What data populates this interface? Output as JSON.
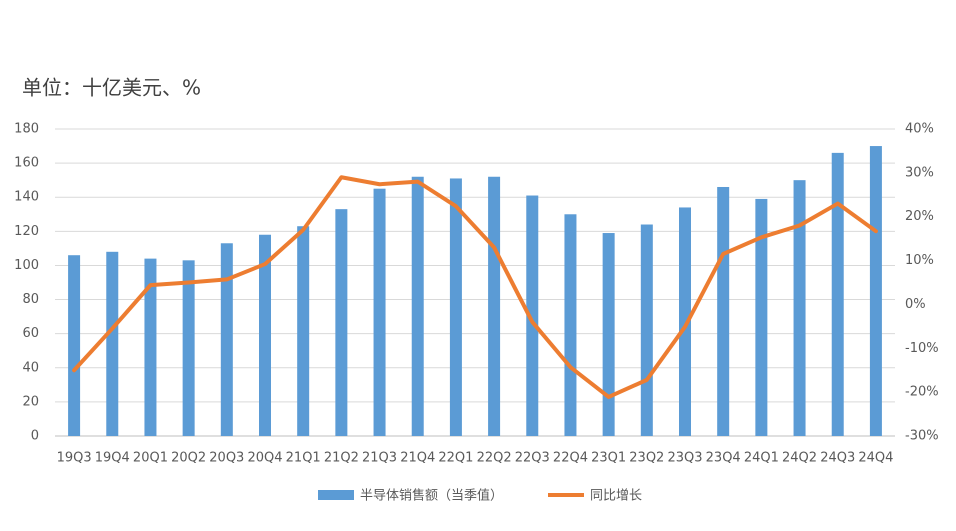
{
  "chart_data": {
    "type": "bar-line",
    "title": "单位：十亿美元、%",
    "categories": [
      "19Q3",
      "19Q4",
      "20Q1",
      "20Q2",
      "20Q3",
      "20Q4",
      "21Q1",
      "21Q2",
      "21Q3",
      "21Q4",
      "22Q1",
      "22Q2",
      "22Q3",
      "22Q4",
      "23Q1",
      "23Q2",
      "23Q3",
      "23Q4",
      "24Q1",
      "24Q2",
      "24Q3",
      "24Q4"
    ],
    "series": [
      {
        "name": "半导体销售额（当季值）",
        "type": "bar",
        "color": "#5b9bd5",
        "values": [
          106,
          108,
          104,
          103,
          113,
          118,
          123,
          133,
          145,
          152,
          151,
          152,
          141,
          130,
          119,
          124,
          134,
          146,
          139,
          150,
          166,
          170
        ]
      },
      {
        "name": "同比增长",
        "type": "line",
        "axis": "y2",
        "color": "#ed7d31",
        "values": [
          -15,
          -5.5,
          4.4,
          5,
          5.7,
          9.2,
          17,
          29,
          27.4,
          28,
          22.4,
          13,
          -4,
          -14.3,
          -21.1,
          -17.2,
          -5.1,
          11.5,
          15.3,
          18,
          23,
          16.7
        ]
      }
    ],
    "ylim": [
      0,
      180
    ],
    "yticks": [
      0,
      20,
      40,
      60,
      80,
      100,
      120,
      140,
      160,
      180
    ],
    "y2lim": [
      -30,
      40
    ],
    "y2ticks": [
      {
        "value": -30,
        "label": "-30%"
      },
      {
        "value": -20,
        "label": "-20%"
      },
      {
        "value": -10,
        "label": "-10%"
      },
      {
        "value": 0,
        "label": "0%"
      },
      {
        "value": 10,
        "label": "10%"
      },
      {
        "value": 20,
        "label": "20%"
      },
      {
        "value": 30,
        "label": "30%"
      },
      {
        "value": 40,
        "label": "40%"
      }
    ],
    "grid": true,
    "legend": "bottom"
  }
}
